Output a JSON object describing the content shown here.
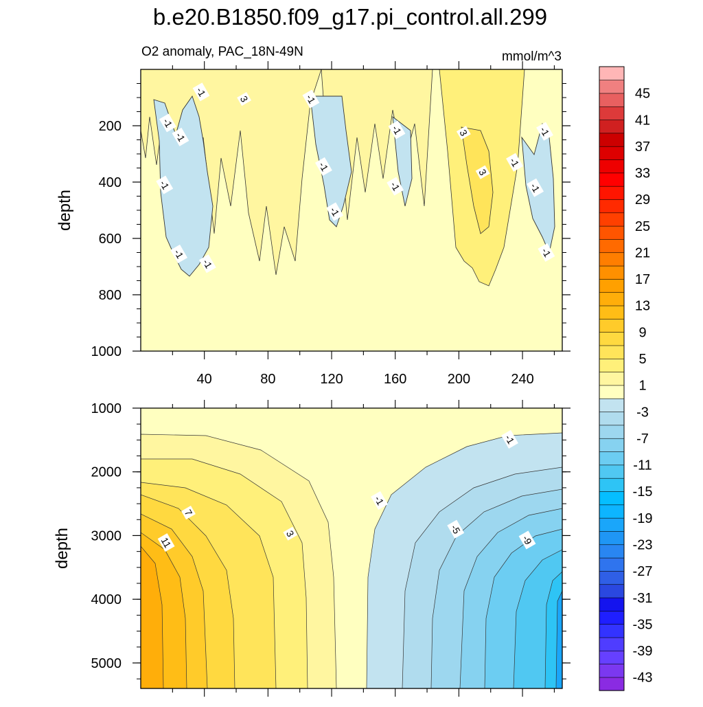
{
  "chart_data": {
    "type": "contour",
    "title": "b.e20.B1850.f09_g17.pi_control.all.299",
    "subtitle_left": "O2 anomaly, PAC_18N-49N",
    "subtitle_right": "mmol/m^3",
    "upper_panel": {
      "ylabel": "depth",
      "ylim": [
        0,
        1000
      ],
      "xlim": [
        0,
        265
      ],
      "yticks": [
        "200",
        "400",
        "600",
        "800",
        "1000"
      ],
      "xticks": [
        "40",
        "80",
        "120",
        "160",
        "200",
        "240"
      ],
      "contour_labels": [
        {
          "text": "-1",
          "x": 17,
          "y": 190
        },
        {
          "text": "-1",
          "x": 38,
          "y": 80
        },
        {
          "text": "-1",
          "x": 25,
          "y": 240
        },
        {
          "text": "-1",
          "x": 15,
          "y": 410
        },
        {
          "text": "-1",
          "x": 24,
          "y": 655
        },
        {
          "text": "-1",
          "x": 42,
          "y": 690
        },
        {
          "text": "3",
          "x": 65,
          "y": 105
        },
        {
          "text": "-1",
          "x": 107,
          "y": 105
        },
        {
          "text": "-1",
          "x": 115,
          "y": 345
        },
        {
          "text": "-1",
          "x": 122,
          "y": 505
        },
        {
          "text": "-1",
          "x": 161,
          "y": 215
        },
        {
          "text": "-1",
          "x": 160,
          "y": 415
        },
        {
          "text": "3",
          "x": 203,
          "y": 225
        },
        {
          "text": "3",
          "x": 215,
          "y": 365
        },
        {
          "text": "-1",
          "x": 235,
          "y": 330
        },
        {
          "text": "-1",
          "x": 254,
          "y": 220
        },
        {
          "text": "-1",
          "x": 248,
          "y": 420
        },
        {
          "text": "-1",
          "x": 255,
          "y": 650
        }
      ]
    },
    "lower_panel": {
      "ylabel": "depth",
      "ylim": [
        1000,
        5400
      ],
      "xlim": [
        0,
        265
      ],
      "yticks": [
        "1000",
        "2000",
        "3000",
        "4000",
        "5000"
      ],
      "contour_labels": [
        {
          "text": "7",
          "x": 30,
          "y": 2640
        },
        {
          "text": "11",
          "x": 16,
          "y": 3110
        },
        {
          "text": "3",
          "x": 94,
          "y": 2970
        },
        {
          "text": "-1",
          "x": 150,
          "y": 2450
        },
        {
          "text": "-1",
          "x": 232,
          "y": 1490
        },
        {
          "text": "-5",
          "x": 198,
          "y": 2900
        },
        {
          "text": "-9",
          "x": 243,
          "y": 3070
        }
      ]
    },
    "colorbar": {
      "colors": [
        "#8a2be2",
        "#7b38f0",
        "#6640ff",
        "#4f3dff",
        "#3333ff",
        "#1f1fff",
        "#1414ee",
        "#2a48e0",
        "#2f5fe6",
        "#2f74ee",
        "#2986f2",
        "#1f96f5",
        "#1aa6fa",
        "#0db5ff",
        "#05beff",
        "#2ec4f5",
        "#50c8f2",
        "#6ccdf2",
        "#86d2f0",
        "#9dd7ef",
        "#b0dcee",
        "#c2e3f0",
        "#ffffc0",
        "#fff6a0",
        "#fff07a",
        "#ffe45a",
        "#ffd940",
        "#ffcb2a",
        "#ffbd16",
        "#ffae0a",
        "#ffa000",
        "#ff9000",
        "#ff7e00",
        "#ff6a00",
        "#ff5500",
        "#ff4000",
        "#ff2a00",
        "#ff1500",
        "#ff0000",
        "#ee0000",
        "#dd0000",
        "#cc0000",
        "#d02020",
        "#dd3a3a",
        "#e86060",
        "#f08080",
        "#ffb6b6"
      ],
      "labels": [
        "-43",
        "-39",
        "-35",
        "-31",
        "-27",
        "-23",
        "-19",
        "-15",
        "-11",
        "-7",
        "-3",
        "1",
        "5",
        "9",
        "13",
        "17",
        "21",
        "25",
        "29",
        "33",
        "37",
        "41",
        "45"
      ]
    }
  }
}
